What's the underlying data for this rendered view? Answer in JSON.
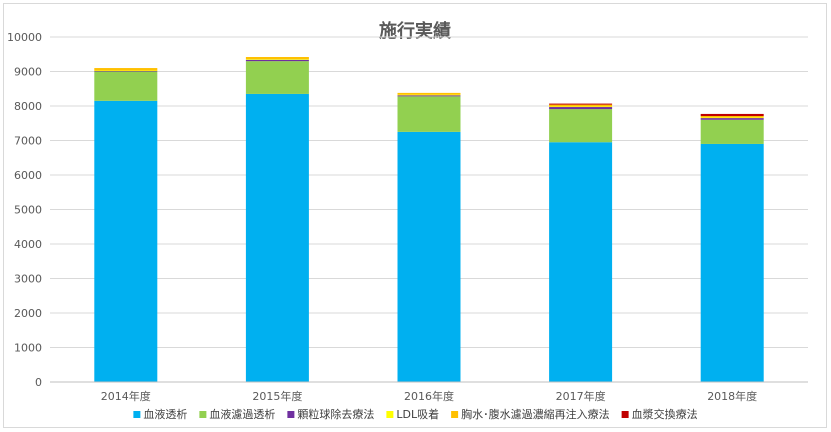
{
  "chart_data": {
    "type": "bar",
    "stacked": true,
    "title": "施行実績",
    "xlabel": "",
    "ylabel": "",
    "categories": [
      "2014年度",
      "2015年度",
      "2016年度",
      "2017年度",
      "2018年度"
    ],
    "ylim": [
      0,
      10000
    ],
    "yticks": [
      0,
      1000,
      2000,
      3000,
      4000,
      5000,
      6000,
      7000,
      8000,
      9000,
      10000
    ],
    "grid": true,
    "legend": "bottom",
    "series": [
      {
        "name": "血液透析",
        "color": "#00b0f0",
        "values": [
          8150,
          8350,
          7250,
          6950,
          6900
        ]
      },
      {
        "name": "血液濾過透析",
        "color": "#92d050",
        "values": [
          850,
          950,
          1030,
          960,
          700
        ]
      },
      {
        "name": "顆粒球除去療法",
        "color": "#7030a0",
        "values": [
          20,
          40,
          30,
          60,
          50
        ]
      },
      {
        "name": "LDL吸着",
        "color": "#ffff00",
        "values": [
          10,
          20,
          20,
          20,
          20
        ]
      },
      {
        "name": "胸水･腹水濾過濃縮再注入療法",
        "color": "#ffc000",
        "values": [
          70,
          60,
          50,
          50,
          40
        ]
      },
      {
        "name": "血漿交換療法",
        "color": "#c00000",
        "values": [
          0,
          0,
          0,
          30,
          60
        ]
      }
    ]
  }
}
